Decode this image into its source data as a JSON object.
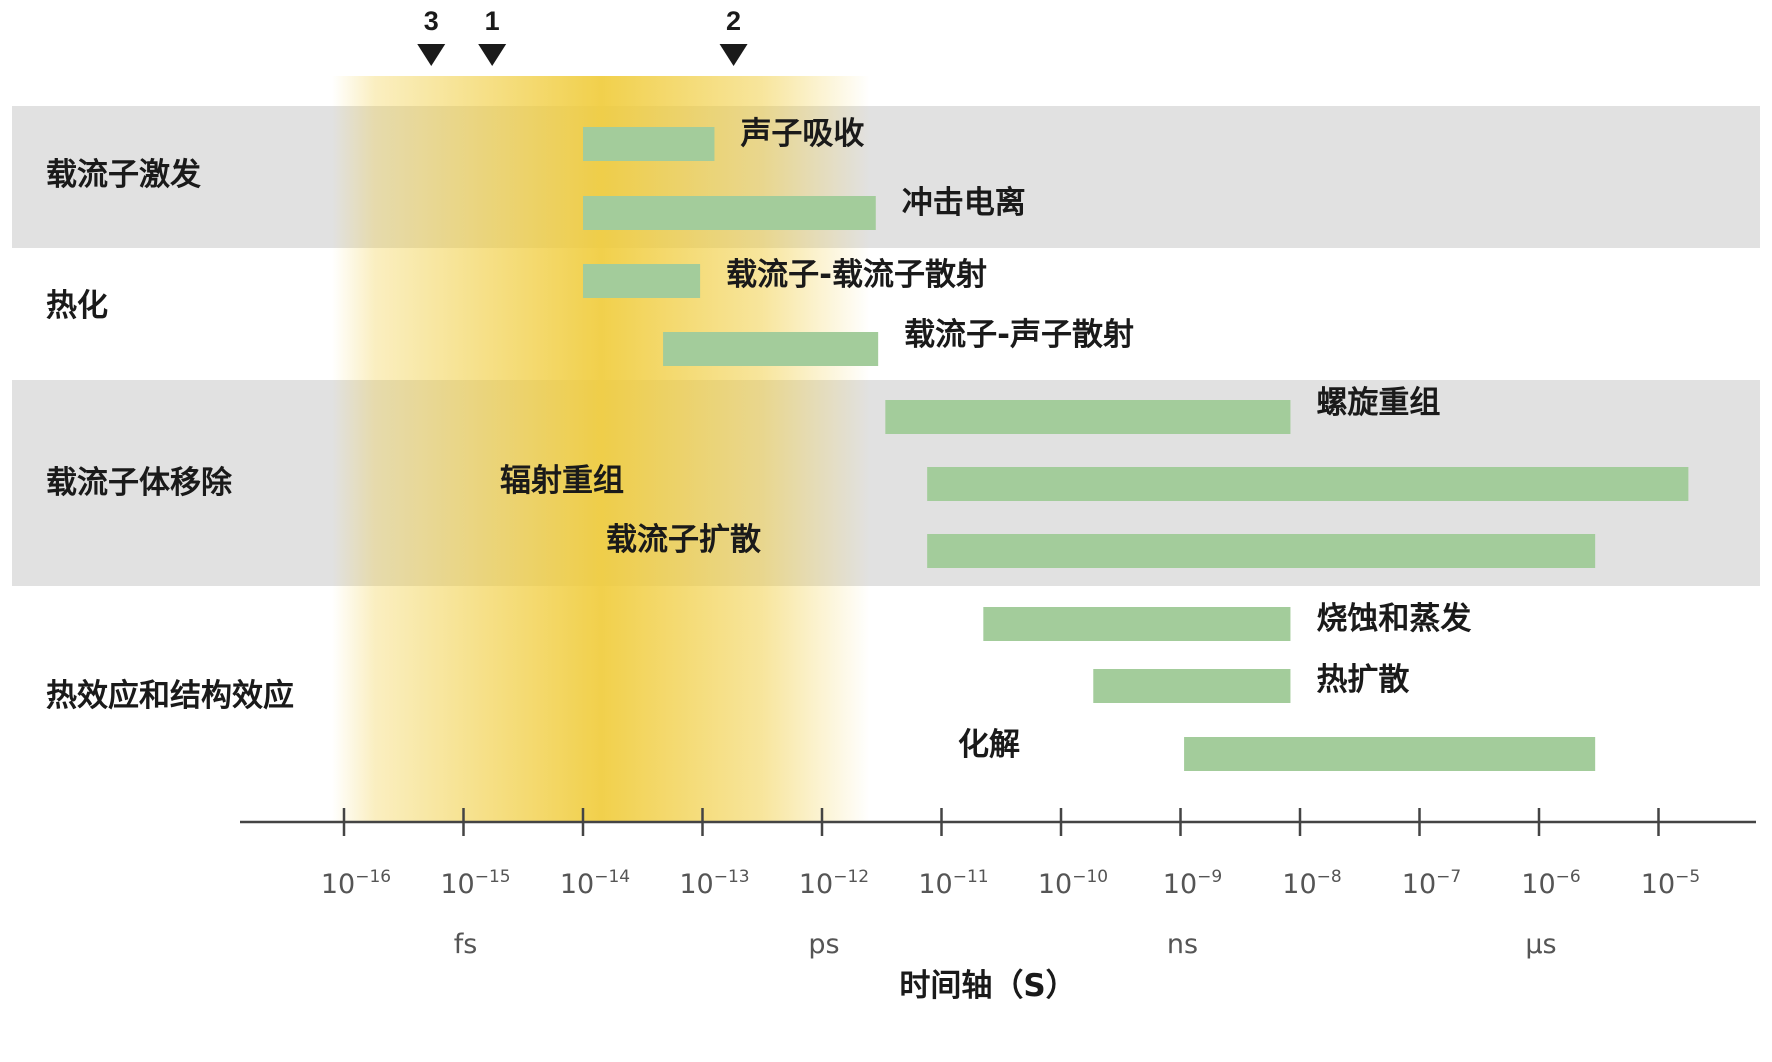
{
  "chart_data": {
    "type": "timeline",
    "x_scale": "log10",
    "xlim_exponent": [
      -16.85,
      -4.1
    ],
    "x_axis": {
      "title": "时间轴（S）",
      "ticks": [
        {
          "base": "10",
          "exp": "−16",
          "value": -16
        },
        {
          "base": "10",
          "exp": "−15",
          "value": -15
        },
        {
          "base": "10",
          "exp": "−14",
          "value": -14
        },
        {
          "base": "10",
          "exp": "−13",
          "value": -13
        },
        {
          "base": "10",
          "exp": "−12",
          "value": -12
        },
        {
          "base": "10",
          "exp": "−11",
          "value": -11
        },
        {
          "base": "10",
          "exp": "−10",
          "value": -10
        },
        {
          "base": "10",
          "exp": "−9",
          "value": -9
        },
        {
          "base": "10",
          "exp": "−8",
          "value": -8
        },
        {
          "base": "10",
          "exp": "−7",
          "value": -7
        },
        {
          "base": "10",
          "exp": "−6",
          "value": -6
        },
        {
          "base": "10",
          "exp": "−5",
          "value": -5
        }
      ],
      "units": [
        {
          "label": "fs",
          "value": -15
        },
        {
          "label": "ps",
          "value": -12
        },
        {
          "label": "ns",
          "value": -9
        },
        {
          "label": "µs",
          "value": -6
        }
      ]
    },
    "markers": [
      {
        "label": "3",
        "value": -15.27
      },
      {
        "label": "1",
        "value": -14.76
      },
      {
        "label": "2",
        "value": -12.74
      }
    ],
    "highlight_band": {
      "from": -16.1,
      "to": -11.6,
      "peak": -14.0,
      "color": "#f0cc3c"
    },
    "categories": [
      {
        "label": "载流子激发",
        "shaded": true
      },
      {
        "label": "热化",
        "shaded": false
      },
      {
        "label": "载流子体移除",
        "shaded": true
      },
      {
        "label": "热效应和结构效应",
        "shaded": false
      }
    ],
    "bars": [
      {
        "label": "声子吸收",
        "category": 0,
        "start": -14.0,
        "end": -12.9,
        "label_side": "right"
      },
      {
        "label": "冲击电离",
        "category": 0,
        "start": -14.0,
        "end": -11.55,
        "label_side": "right"
      },
      {
        "label": "载流子-载流子散射",
        "category": 1,
        "start": -14.0,
        "end": -13.02,
        "label_side": "right"
      },
      {
        "label": "载流子-声子散射",
        "category": 1,
        "start": -13.33,
        "end": -11.53,
        "label_side": "right"
      },
      {
        "label": "螺旋重组",
        "category": 2,
        "start": -11.47,
        "end": -8.08,
        "label_side": "right"
      },
      {
        "label": "辐射重组",
        "category": 2,
        "start": -11.12,
        "end": -4.75,
        "label_side": "left"
      },
      {
        "label": "载流子扩散",
        "category": 2,
        "start": -11.12,
        "end": -5.53,
        "label_side": "left"
      },
      {
        "label": "烧蚀和蒸发",
        "category": 3,
        "start": -10.65,
        "end": -8.08,
        "label_side": "right"
      },
      {
        "label": "热扩散",
        "category": 3,
        "start": -9.73,
        "end": -8.08,
        "label_side": "right"
      },
      {
        "label": "化解",
        "category": 3,
        "start": -8.97,
        "end": -5.53,
        "label_side": "left"
      }
    ],
    "colors": {
      "bar": "#a3cc9b",
      "shaded_row": "#e1e1e1",
      "axis": "#444444",
      "marker": "#1a1a1a"
    }
  }
}
